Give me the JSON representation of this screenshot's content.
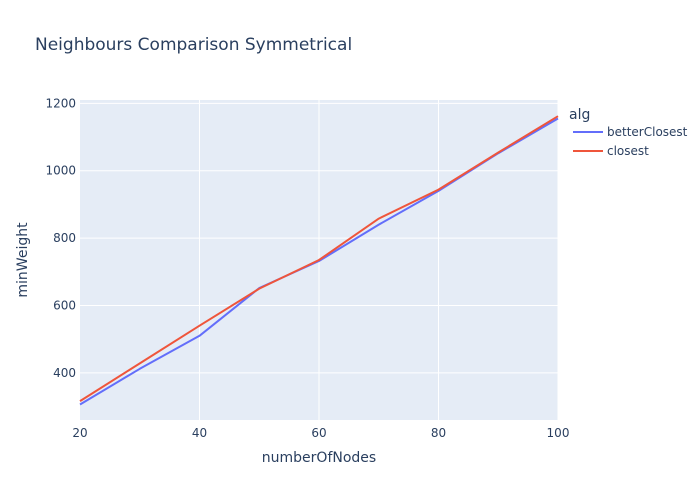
{
  "chart_data": {
    "type": "line",
    "title": "Neighbours Comparison Symmetrical",
    "xlabel": "numberOfNodes",
    "ylabel": "minWeight",
    "xlim": [
      20,
      100
    ],
    "ylim": [
      260,
      1210
    ],
    "xticks": [
      20,
      40,
      60,
      80,
      100
    ],
    "yticks": [
      400,
      600,
      800,
      1000,
      1200
    ],
    "grid": true,
    "legend": {
      "title": "alg",
      "placement": "right"
    },
    "x": [
      20,
      30,
      40,
      50,
      60,
      70,
      80,
      90,
      100
    ],
    "series": [
      {
        "name": "betterClosest",
        "color": "#636efa",
        "values": [
          306,
          412,
          510,
          652,
          732,
          840,
          940,
          1052,
          1155
        ]
      },
      {
        "name": "closest",
        "color": "#ef553b",
        "values": [
          316,
          428,
          540,
          650,
          735,
          858,
          944,
          1054,
          1162
        ]
      }
    ],
    "colors": {
      "plot_background": "#e5ecf6",
      "grid": "#ffffff",
      "text": "#2a3f5f"
    }
  }
}
